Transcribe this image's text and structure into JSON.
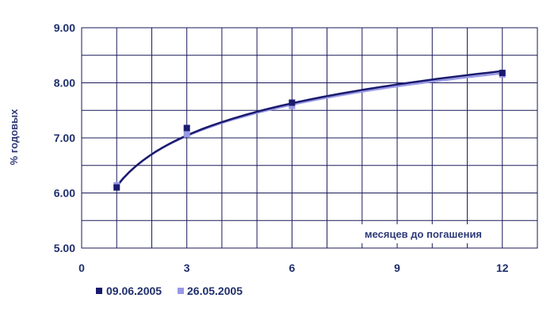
{
  "chart_data": {
    "type": "line",
    "title": "",
    "xlabel": "месяцев до погашения",
    "ylabel": "% годовых",
    "xlim": [
      0,
      13
    ],
    "ylim": [
      5.0,
      9.0
    ],
    "x_ticks": [
      "0",
      "3",
      "6",
      "9",
      "12"
    ],
    "y_ticks": [
      "5.00",
      "6.00",
      "7.00",
      "8.00",
      "9.00"
    ],
    "grid": true,
    "legend_position": "bottom-left",
    "series": [
      {
        "name": "09.06.2005",
        "color": "#1a1a6e",
        "marker": "square",
        "points": [
          {
            "x": 1,
            "y": 6.1
          },
          {
            "x": 3,
            "y": 7.18
          },
          {
            "x": 6,
            "y": 7.64
          },
          {
            "x": 12,
            "y": 8.18
          }
        ],
        "trend": {
          "a": 6.12,
          "b": 0.842
        }
      },
      {
        "name": "26.05.2005",
        "color": "#9999e6",
        "marker": "square",
        "points": [
          {
            "x": 1,
            "y": 6.14
          },
          {
            "x": 3,
            "y": 7.07
          },
          {
            "x": 6,
            "y": 7.58
          },
          {
            "x": 12,
            "y": 8.15
          }
        ],
        "trend": {
          "a": 6.13,
          "b": 0.822
        }
      }
    ]
  }
}
